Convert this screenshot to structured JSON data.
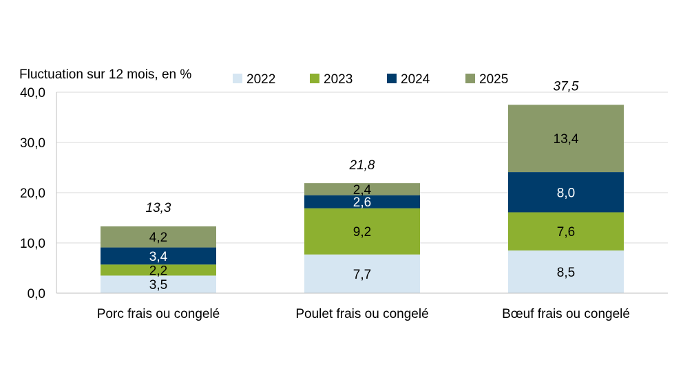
{
  "chart_data": {
    "type": "bar",
    "stacked": true,
    "ylabel": "Fluctuation sur 12 mois, en %",
    "ylim": [
      0,
      40
    ],
    "yticks": [
      "0,0",
      "10,0",
      "20,0",
      "30,0",
      "40,0"
    ],
    "ytick_values": [
      0,
      10,
      20,
      30,
      40
    ],
    "grid": true,
    "legend_position": "top",
    "categories": [
      "Porc frais ou congelé",
      "Poulet frais ou congelé",
      "Bœuf frais ou congelé"
    ],
    "series": [
      {
        "name": "2022",
        "color": "#d6e6f2",
        "label_color": "#000000",
        "values": [
          3.5,
          7.7,
          8.5
        ],
        "labels": [
          "3,5",
          "7,7",
          "8,5"
        ]
      },
      {
        "name": "2023",
        "color": "#8db030",
        "label_color": "#000000",
        "values": [
          2.2,
          9.2,
          7.6
        ],
        "labels": [
          "2,2",
          "9,2",
          "7,6"
        ]
      },
      {
        "name": "2024",
        "color": "#003c6b",
        "label_color": "#ffffff",
        "values": [
          3.4,
          2.6,
          8.0
        ],
        "labels": [
          "3,4",
          "2,6",
          "8,0"
        ]
      },
      {
        "name": "2025",
        "color": "#8a9a69",
        "label_color": "#000000",
        "values": [
          4.2,
          2.4,
          13.4
        ],
        "labels": [
          "4,2",
          "2,4",
          "13,4"
        ]
      }
    ],
    "totals": [
      13.3,
      21.8,
      37.5
    ],
    "total_labels": [
      "13,3",
      "21,8",
      "37,5"
    ]
  }
}
